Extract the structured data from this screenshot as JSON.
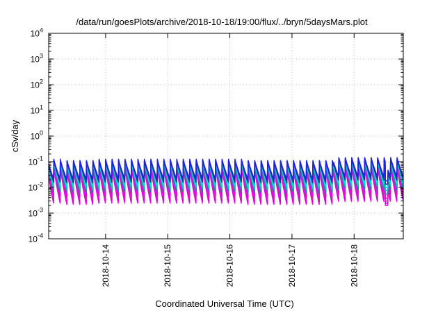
{
  "chart_data": {
    "type": "line",
    "title": "/data/run/goesPlots/archive/2018-10-18/19:00/flux/../bryn/5daysMars.plot",
    "xlabel": "Coordinated Universal Time (UTC)",
    "ylabel": "cSv/day",
    "yscale": "log",
    "ylim": [
      0.0001,
      10000
    ],
    "xlim": [
      "2018-10-13 02:00",
      "2018-10-18 19:00"
    ],
    "grid": true,
    "legend": "none",
    "x_ticks": [
      "2018-10-14",
      "2018-10-15",
      "2018-10-16",
      "2018-10-17",
      "2018-10-18"
    ],
    "y_ticks": [
      {
        "base": "10",
        "exp": "4"
      },
      {
        "base": "10",
        "exp": "3"
      },
      {
        "base": "10",
        "exp": "2"
      },
      {
        "base": "10",
        "exp": "1"
      },
      {
        "base": "10",
        "exp": "0"
      },
      {
        "base": "10",
        "exp": "-1"
      },
      {
        "base": "10",
        "exp": "-2"
      },
      {
        "base": "10",
        "exp": "-3"
      },
      {
        "base": "10",
        "exp": "-4"
      }
    ],
    "pattern": {
      "cycle_hours": 2.5,
      "start_phase_hours": 0.5,
      "gap_from_hour": 130,
      "gap_to_hour": 131,
      "boost_from_hour": 110,
      "boost_factor": 1.3
    },
    "series": [
      {
        "color": "#ff00ff",
        "peak": 0.062,
        "trough": 0.0022
      },
      {
        "color": "#cc00cc",
        "peak": 0.07,
        "trough": 0.0027
      },
      {
        "color": "#c030a0",
        "peak": 0.078,
        "trough": 0.0033
      },
      {
        "color": "#ee00ee",
        "peak": 0.085,
        "trough": 0.0042
      },
      {
        "color": "#2080a0",
        "peak": 0.095,
        "trough": 0.0062
      },
      {
        "color": "#00c0c0",
        "peak": 0.1,
        "trough": 0.0085
      },
      {
        "color": "#00e0e0",
        "peak": 0.108,
        "trough": 0.011
      },
      {
        "color": "#3030a0",
        "peak": 0.115,
        "trough": 0.015
      },
      {
        "color": "#2020e0",
        "peak": 0.125,
        "trough": 0.02
      }
    ]
  }
}
